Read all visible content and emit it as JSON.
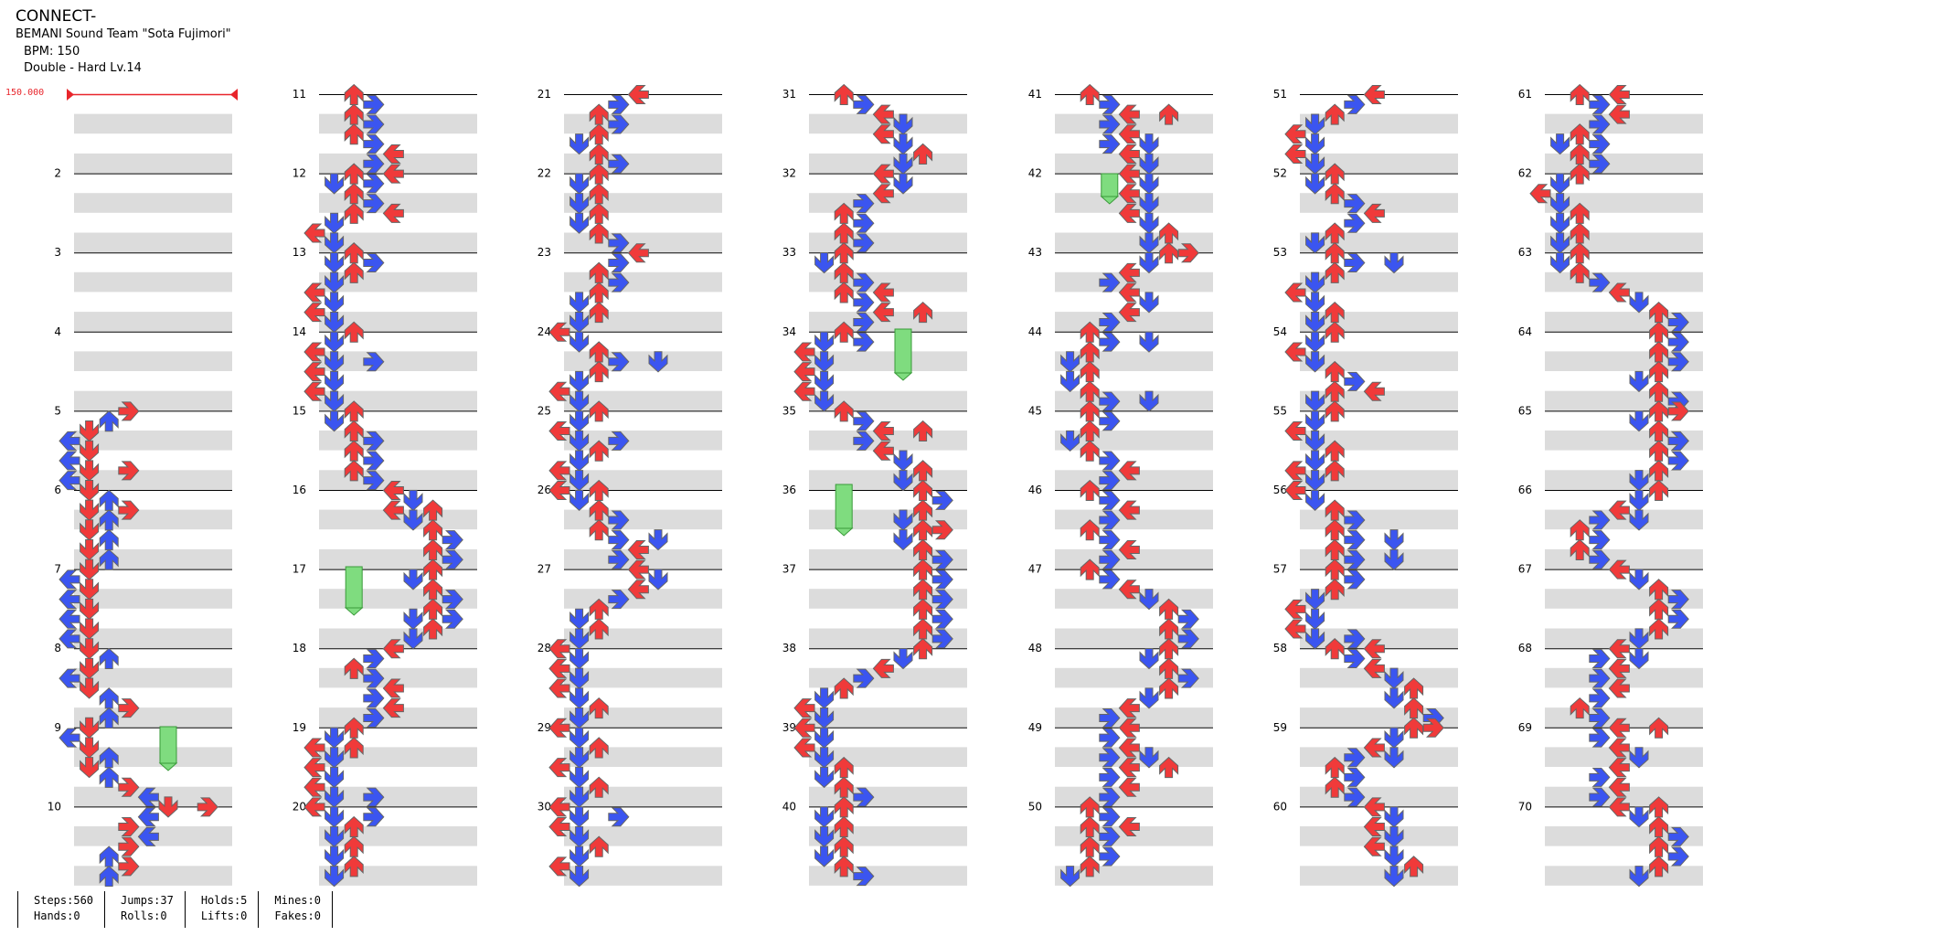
{
  "song": {
    "title": "CONNECT-",
    "artist": "BEMANI Sound Team \"Sota Fujimori\"",
    "bpm_text": "BPM: 150",
    "difficulty_text": "Double - Hard  Lv.14",
    "bpm_marker": "150.000"
  },
  "colors": {
    "red": "#f03a3a",
    "blue": "#3b55f0",
    "yellow": "#f5e13a",
    "hold": "#7fdc7f"
  },
  "measures": [
    "2",
    "3",
    "4",
    "5",
    "6",
    "7",
    "8",
    "9",
    "10",
    "11",
    "12",
    "13",
    "14",
    "15",
    "16",
    "17",
    "18",
    "19",
    "20",
    "21",
    "22",
    "23",
    "24",
    "25",
    "26",
    "27",
    "28",
    "29",
    "30",
    "31",
    "32",
    "33",
    "34",
    "35",
    "36",
    "37",
    "38",
    "39",
    "40",
    "41",
    "42",
    "43",
    "44",
    "45",
    "46",
    "47",
    "48",
    "49",
    "50",
    "51",
    "52",
    "53",
    "54",
    "55",
    "56",
    "57",
    "58",
    "59",
    "60",
    "61",
    "62",
    "63",
    "64",
    "65",
    "66",
    "67",
    "68",
    "69",
    "70"
  ],
  "stats": [
    [
      "Steps:560",
      "Hands:0"
    ],
    [
      "Jumps:37",
      "Rolls:0"
    ],
    [
      "Holds:5",
      "Lifts:0"
    ],
    [
      "Mines:0",
      "Fakes:0"
    ]
  ]
}
